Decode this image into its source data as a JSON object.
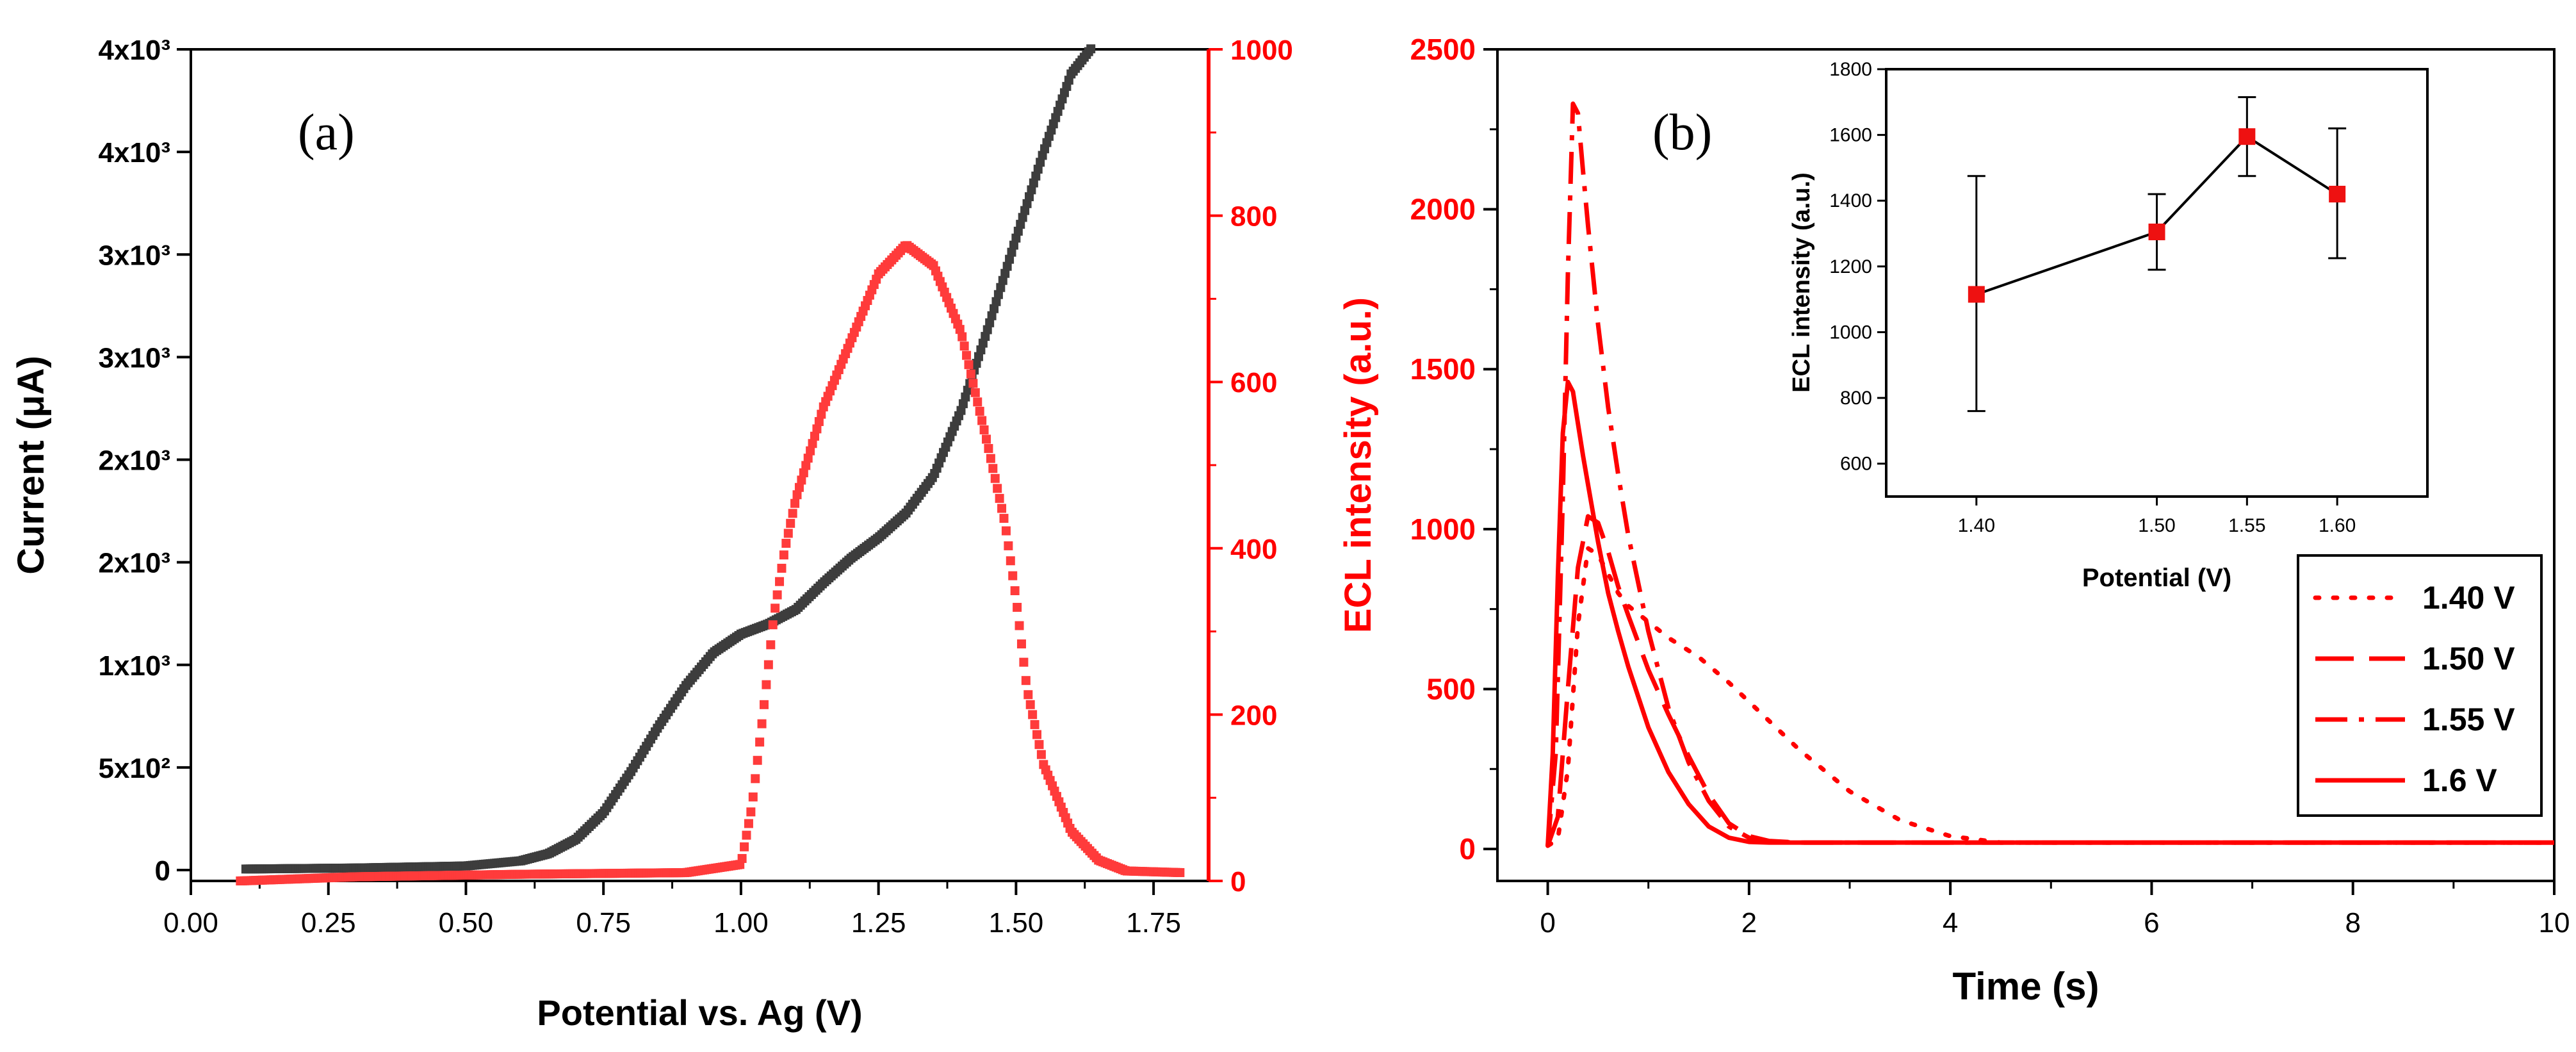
{
  "colors": {
    "black_series": "#3d3d3d",
    "red_series": "#ff3b3b",
    "red_axis": "#ff0000",
    "inset_marker": "#ee1111",
    "axis": "#000000"
  },
  "chart_data": [
    {
      "id": "a",
      "panel_label": "(a)",
      "type": "scatter",
      "xlabel": "Potential vs. Ag (V)",
      "xlim": [
        0.0,
        1.85
      ],
      "xticks": [
        "0.00",
        "0.25",
        "0.50",
        "0.75",
        "1.00",
        "1.25",
        "1.50",
        "1.75"
      ],
      "xtick_values": [
        0.0,
        0.25,
        0.5,
        0.75,
        1.0,
        1.25,
        1.5,
        1.75
      ],
      "y_left": {
        "label": "Current (μA)",
        "ylim": [
          0,
          4000
        ],
        "tick_values": [
          0,
          500,
          1000,
          1500,
          2000,
          2500,
          3000,
          3500,
          4000
        ],
        "tick_labels": [
          "0",
          "5x10²",
          "1x10³",
          "2x10³",
          "2x10³",
          "3x10³",
          "3x10³",
          "4x10³",
          "4x10³"
        ]
      },
      "y_right": {
        "label": "ECL intensity (a.u.)",
        "ylim": [
          0,
          1000
        ],
        "tick_values": [
          0,
          200,
          400,
          600,
          800,
          1000
        ],
        "tick_labels": [
          "0",
          "200",
          "400",
          "600",
          "800",
          "1000"
        ]
      },
      "series": [
        {
          "name": "Current",
          "axis": "left",
          "color": "#3d3d3d",
          "x": [
            0.1,
            0.3,
            0.5,
            0.6,
            0.65,
            0.7,
            0.75,
            0.8,
            0.85,
            0.9,
            0.95,
            1.0,
            1.05,
            1.1,
            1.15,
            1.2,
            1.25,
            1.3,
            1.35,
            1.4,
            1.45,
            1.5,
            1.55,
            1.6,
            1.65
          ],
          "y": [
            5,
            10,
            20,
            45,
            80,
            150,
            280,
            480,
            700,
            900,
            1060,
            1150,
            1200,
            1270,
            1400,
            1520,
            1620,
            1740,
            1920,
            2240,
            2650,
            3080,
            3500,
            3880,
            4050
          ]
        },
        {
          "name": "ECL intensity",
          "axis": "right",
          "color": "#ff3b3b",
          "x": [
            0.09,
            0.3,
            0.6,
            0.9,
            1.0,
            1.02,
            1.04,
            1.06,
            1.08,
            1.1,
            1.15,
            1.2,
            1.25,
            1.3,
            1.35,
            1.4,
            1.45,
            1.48,
            1.5,
            1.52,
            1.55,
            1.6,
            1.65,
            1.7,
            1.8
          ],
          "y": [
            0,
            5,
            8,
            10,
            20,
            90,
            200,
            320,
            400,
            460,
            570,
            650,
            730,
            765,
            740,
            660,
            520,
            430,
            340,
            230,
            140,
            60,
            25,
            12,
            10
          ]
        }
      ]
    },
    {
      "id": "b",
      "panel_label": "(b)",
      "type": "line",
      "xlabel": "Time (s)",
      "ylabel": "",
      "xlim": [
        -0.5,
        10
      ],
      "ylim": [
        -100,
        2500
      ],
      "xtick_values": [
        0,
        2,
        4,
        6,
        8,
        10
      ],
      "xticks": [
        "0",
        "2",
        "4",
        "6",
        "8",
        "10"
      ],
      "ytick_values": [
        0,
        500,
        1000,
        1500,
        2000,
        2500
      ],
      "yticks": [
        "0",
        "500",
        "1000",
        "1500",
        "2000",
        "2500"
      ],
      "series": [
        {
          "name": "1.40 V",
          "dash": "dot",
          "x": [
            0,
            0.1,
            0.2,
            0.3,
            0.4,
            0.5,
            0.6,
            0.7,
            0.8,
            1.0,
            1.2,
            1.5,
            1.8,
            2.0,
            2.5,
            3.0,
            3.5,
            4.0,
            4.5,
            5.0,
            10.0
          ],
          "y": [
            10,
            30,
            250,
            700,
            940,
            920,
            860,
            800,
            760,
            710,
            660,
            600,
            520,
            460,
            310,
            180,
            90,
            40,
            20,
            20,
            20
          ]
        },
        {
          "name": "1.50 V",
          "dash": "dash",
          "x": [
            0,
            0.1,
            0.2,
            0.3,
            0.4,
            0.5,
            0.6,
            0.7,
            0.8,
            1.0,
            1.2,
            1.4,
            1.6,
            1.8,
            2.0,
            2.2,
            2.5,
            3.0,
            10.0
          ],
          "y": [
            10,
            100,
            500,
            880,
            1040,
            1020,
            930,
            820,
            730,
            560,
            420,
            290,
            170,
            80,
            40,
            25,
            20,
            20,
            20
          ]
        },
        {
          "name": "1.55 V",
          "dash": "dashdot",
          "x": [
            0,
            0.08,
            0.15,
            0.2,
            0.25,
            0.3,
            0.35,
            0.4,
            0.5,
            0.6,
            0.7,
            0.8,
            1.0,
            1.2,
            1.4,
            1.6,
            1.8,
            2.0,
            2.2,
            2.5,
            10.0
          ],
          "y": [
            10,
            300,
            1100,
            1800,
            2330,
            2300,
            2120,
            1950,
            1640,
            1380,
            1170,
            980,
            680,
            440,
            270,
            150,
            70,
            35,
            22,
            20,
            20
          ]
        },
        {
          "name": "1.6 V",
          "dash": "solid",
          "x": [
            0,
            0.05,
            0.1,
            0.15,
            0.2,
            0.25,
            0.3,
            0.35,
            0.4,
            0.5,
            0.6,
            0.7,
            0.8,
            1.0,
            1.2,
            1.4,
            1.6,
            1.8,
            2.0,
            2.2,
            2.5,
            10.0
          ],
          "y": [
            10,
            300,
            850,
            1300,
            1460,
            1430,
            1330,
            1230,
            1140,
            960,
            800,
            680,
            570,
            380,
            240,
            140,
            70,
            35,
            22,
            20,
            20,
            20
          ]
        }
      ],
      "legend": {
        "entries": [
          "1.40 V",
          "1.50 V",
          "1.55 V",
          "1.6 V"
        ],
        "placement": "right"
      },
      "inset": {
        "type": "scatter",
        "xlabel": "Potential (V)",
        "ylabel": "ECL intensity (a.u.)",
        "categories": [
          "1.40",
          "1.50",
          "1.55",
          "1.60"
        ],
        "values": [
          1115,
          1305,
          1595,
          1420
        ],
        "error_low": [
          760,
          1190,
          1475,
          1225
        ],
        "error_high": [
          1475,
          1420,
          1715,
          1620
        ],
        "ylim": [
          500,
          1800
        ],
        "ytick_values": [
          600,
          800,
          1000,
          1200,
          1400,
          1600,
          1800
        ],
        "yticks": [
          "600",
          "800",
          "1000",
          "1200",
          "1400",
          "1600",
          "1800"
        ]
      }
    }
  ]
}
